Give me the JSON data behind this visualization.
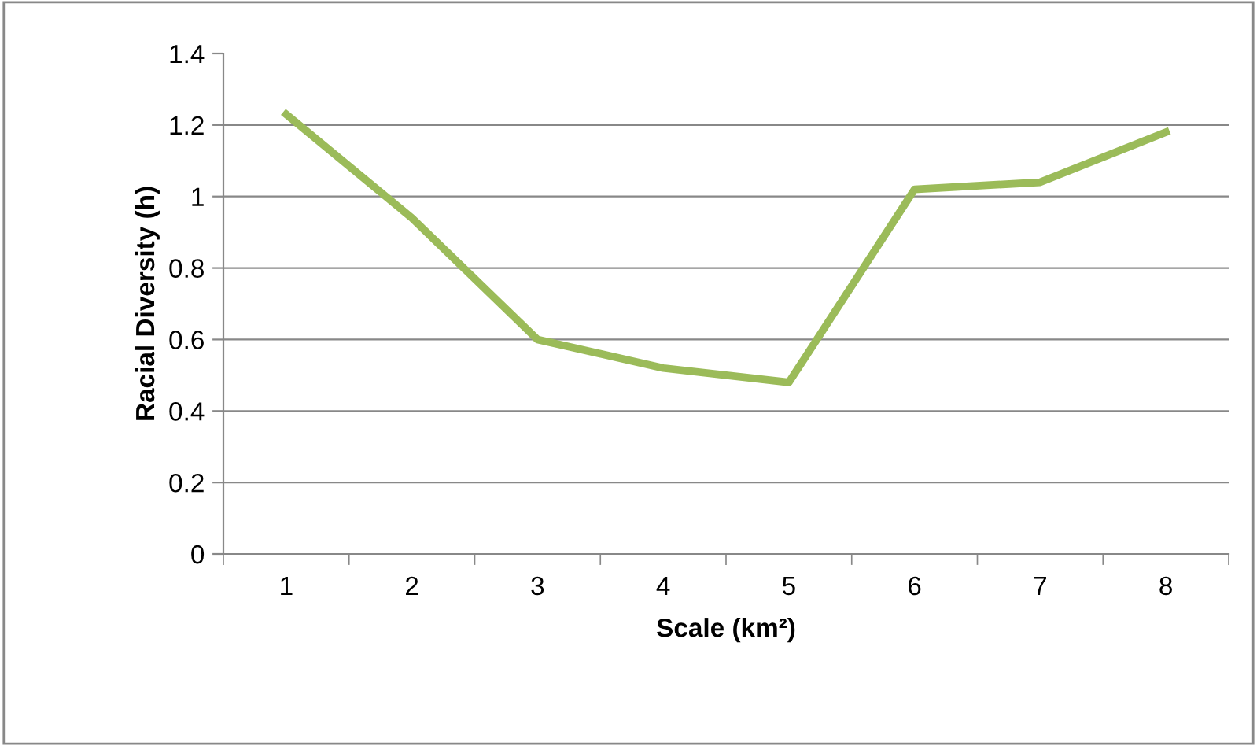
{
  "chart_data": {
    "type": "line",
    "xlabel": "Scale (km²)",
    "ylabel": "Racial Diversity (h)",
    "categories": [
      "1",
      "2",
      "3",
      "4",
      "5",
      "6",
      "7",
      "8"
    ],
    "series": [
      {
        "color": "#9bbb59",
        "values": [
          1.23,
          0.94,
          0.6,
          0.52,
          0.48,
          1.02,
          1.04,
          1.18
        ]
      }
    ],
    "ylim": [
      0,
      1.4
    ],
    "yticks": [
      0,
      0.2,
      0.4,
      0.6,
      0.8,
      1,
      1.2,
      1.4
    ],
    "grid": "y",
    "marker": "none",
    "line_style": "solid"
  }
}
